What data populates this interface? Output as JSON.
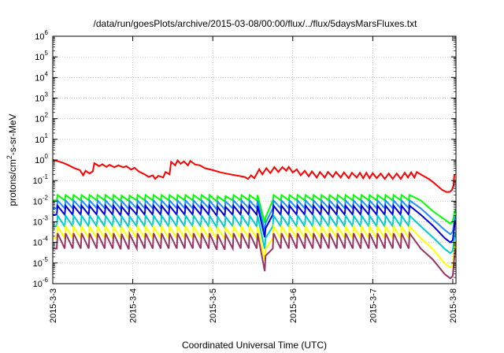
{
  "chart_data": {
    "type": "line",
    "title": "/data/run/goesPlots/archive/2015-03-08/00:00/flux/../flux/5daysMarsFluxes.txt",
    "xlabel": "Coordinated Universal Time (UTC)",
    "ylabel": "protons/cm2-s-sr-MeV",
    "ylabel_parts": {
      "pre": "protons/cm",
      "sup": "2",
      "post": "-s-sr-MeV"
    },
    "x_axis": {
      "unit": "days",
      "range": [
        "2015-03-03",
        "2015-03-08 01:00"
      ],
      "range_days": [
        0,
        5.04
      ],
      "ticks": [
        {
          "label": "2015-3-3",
          "day": 0
        },
        {
          "label": "2015-3-4",
          "day": 1
        },
        {
          "label": "2015-3-5",
          "day": 2
        },
        {
          "label": "2015-3-6",
          "day": 3
        },
        {
          "label": "2015-3-7",
          "day": 4
        },
        {
          "label": "2015-3-8",
          "day": 5
        }
      ]
    },
    "y_axis": {
      "scale": "log",
      "range": [
        1e-06,
        1000000.0
      ],
      "ticks": [
        {
          "base": "10",
          "exp": "-6",
          "value": 1e-06
        },
        {
          "base": "10",
          "exp": "-5",
          "value": 1e-05
        },
        {
          "base": "10",
          "exp": "-4",
          "value": 0.0001
        },
        {
          "base": "10",
          "exp": "-3",
          "value": 0.001
        },
        {
          "base": "10",
          "exp": "-2",
          "value": 0.01
        },
        {
          "base": "10",
          "exp": "-1",
          "value": 0.1
        },
        {
          "base": "10",
          "exp": "0",
          "value": 1
        },
        {
          "base": "10",
          "exp": "1",
          "value": 10
        },
        {
          "base": "10",
          "exp": "2",
          "value": 100
        },
        {
          "base": "10",
          "exp": "3",
          "value": 1000
        },
        {
          "base": "10",
          "exp": "4",
          "value": 10000
        },
        {
          "base": "10",
          "exp": "5",
          "value": 100000
        },
        {
          "base": "10",
          "exp": "6",
          "value": 1000000
        }
      ]
    },
    "grid": true,
    "legend": "none",
    "red_series": {
      "color": "#ff0000",
      "points": [
        [
          0.0,
          1.0
        ],
        [
          0.05,
          0.9
        ],
        [
          0.12,
          0.75
        ],
        [
          0.2,
          0.55
        ],
        [
          0.27,
          0.4
        ],
        [
          0.34,
          0.32
        ],
        [
          0.38,
          0.18
        ],
        [
          0.41,
          0.3
        ],
        [
          0.46,
          0.22
        ],
        [
          0.5,
          0.28
        ],
        [
          0.52,
          0.7
        ],
        [
          0.58,
          0.5
        ],
        [
          0.62,
          0.62
        ],
        [
          0.67,
          0.46
        ],
        [
          0.71,
          0.58
        ],
        [
          0.77,
          0.44
        ],
        [
          0.82,
          0.55
        ],
        [
          0.88,
          0.44
        ],
        [
          0.92,
          0.5
        ],
        [
          0.98,
          0.34
        ],
        [
          1.02,
          0.42
        ],
        [
          1.08,
          0.27
        ],
        [
          1.15,
          0.2
        ],
        [
          1.2,
          0.15
        ],
        [
          1.25,
          0.18
        ],
        [
          1.28,
          0.12
        ],
        [
          1.32,
          0.17
        ],
        [
          1.38,
          0.14
        ],
        [
          1.41,
          0.26
        ],
        [
          1.46,
          0.2
        ],
        [
          1.48,
          0.8
        ],
        [
          1.53,
          0.55
        ],
        [
          1.56,
          0.95
        ],
        [
          1.6,
          0.65
        ],
        [
          1.64,
          0.85
        ],
        [
          1.69,
          0.55
        ],
        [
          1.72,
          0.9
        ],
        [
          1.78,
          0.6
        ],
        [
          1.84,
          0.55
        ],
        [
          1.9,
          0.4
        ],
        [
          2.0,
          0.32
        ],
        [
          2.1,
          0.25
        ],
        [
          2.22,
          0.2
        ],
        [
          2.32,
          0.17
        ],
        [
          2.4,
          0.15
        ],
        [
          2.44,
          0.12
        ],
        [
          2.48,
          0.18
        ],
        [
          2.52,
          0.13
        ],
        [
          2.58,
          0.35
        ],
        [
          2.62,
          0.2
        ],
        [
          2.67,
          0.4
        ],
        [
          2.72,
          0.23
        ],
        [
          2.77,
          0.45
        ],
        [
          2.82,
          0.26
        ],
        [
          2.87,
          0.45
        ],
        [
          2.92,
          0.3
        ],
        [
          2.95,
          0.46
        ],
        [
          3.0,
          0.25
        ],
        [
          3.05,
          0.35
        ],
        [
          3.1,
          0.18
        ],
        [
          3.15,
          0.3
        ],
        [
          3.2,
          0.16
        ],
        [
          3.24,
          0.28
        ],
        [
          3.3,
          0.14
        ],
        [
          3.34,
          0.26
        ],
        [
          3.4,
          0.14
        ],
        [
          3.44,
          0.26
        ],
        [
          3.5,
          0.15
        ],
        [
          3.54,
          0.26
        ],
        [
          3.6,
          0.14
        ],
        [
          3.64,
          0.25
        ],
        [
          3.7,
          0.13
        ],
        [
          3.74,
          0.24
        ],
        [
          3.8,
          0.14
        ],
        [
          3.84,
          0.24
        ],
        [
          3.88,
          0.13
        ],
        [
          3.92,
          0.24
        ],
        [
          3.96,
          0.13
        ],
        [
          4.0,
          0.23
        ],
        [
          4.05,
          0.13
        ],
        [
          4.1,
          0.22
        ],
        [
          4.15,
          0.12
        ],
        [
          4.2,
          0.22
        ],
        [
          4.25,
          0.12
        ],
        [
          4.3,
          0.22
        ],
        [
          4.35,
          0.12
        ],
        [
          4.4,
          0.24
        ],
        [
          4.44,
          0.14
        ],
        [
          4.48,
          0.25
        ],
        [
          4.52,
          0.14
        ],
        [
          4.55,
          0.26
        ],
        [
          4.62,
          0.18
        ],
        [
          4.7,
          0.12
        ],
        [
          4.76,
          0.08
        ],
        [
          4.82,
          0.05
        ],
        [
          4.87,
          0.035
        ],
        [
          4.92,
          0.028
        ],
        [
          4.96,
          0.028
        ],
        [
          4.99,
          0.035
        ],
        [
          5.01,
          0.06
        ],
        [
          5.02,
          0.2
        ]
      ]
    },
    "sawtooth_series": [
      {
        "color": "#00ff00",
        "base": 0.011,
        "peak": 0.02,
        "end_min": 0.0008,
        "end_value": 0.004
      },
      {
        "color": "#1e90ff",
        "base": 0.0045,
        "peak": 0.011,
        "end_min": 0.00025,
        "end_value": 0.002
      },
      {
        "color": "#0000e0",
        "base": 0.0022,
        "peak": 0.006,
        "end_min": 0.0001,
        "end_value": 0.0012
      },
      {
        "color": "#00cccc",
        "base": 0.0006,
        "peak": 0.002,
        "end_min": 3e-05,
        "end_value": 0.0003
      },
      {
        "color": "#ffff00",
        "base": 0.00016,
        "peak": 0.0006,
        "end_min": 6e-06,
        "end_value": 0.00012
      },
      {
        "color": "#993366",
        "base": 5e-05,
        "peak": 0.00028,
        "end_min": 1.8e-06,
        "end_value": 5e-05
      }
    ],
    "sawtooth_shape": {
      "period_days": 0.1,
      "first_rise_day": 0.05,
      "dips": [
        {
          "day": 0.9,
          "factor": 0.6
        },
        {
          "day": 2.1,
          "factor": 0.3
        },
        {
          "day": 2.65,
          "factor": 0.08
        },
        {
          "day": 4.55,
          "factor": 0.06
        }
      ]
    }
  }
}
